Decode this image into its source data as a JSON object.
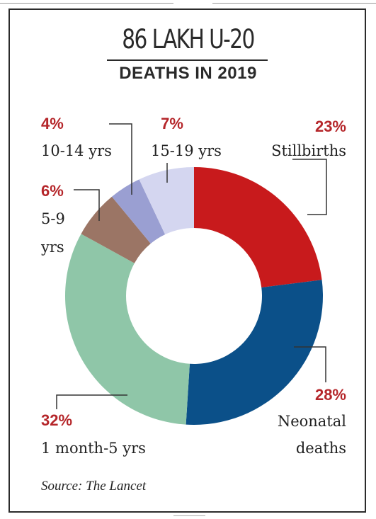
{
  "colors": {
    "accent_red": "#b5262a",
    "leader": "#333333"
  },
  "chart_data": {
    "type": "pie",
    "donut": true,
    "title": "86 LAKH U-20",
    "subtitle": "DEATHS IN 2019",
    "source": "Source: The Lancet",
    "slices": [
      {
        "label": "Stillbirths",
        "label_lines": [
          "Stillbirths"
        ],
        "value": 23,
        "value_label": "23%",
        "color": "#c81a1c"
      },
      {
        "label": "Neonatal deaths",
        "label_lines": [
          "Neonatal",
          "deaths"
        ],
        "value": 28,
        "value_label": "28%",
        "color": "#0b5089"
      },
      {
        "label": "1 month-5 yrs",
        "label_lines": [
          "1 month-5 yrs"
        ],
        "value": 32,
        "value_label": "32%",
        "color": "#8fc6a8"
      },
      {
        "label": "5-9 yrs",
        "label_lines": [
          "5-9",
          "yrs"
        ],
        "value": 6,
        "value_label": "6%",
        "color": "#9b7565"
      },
      {
        "label": "10-14 yrs",
        "label_lines": [
          "10-14 yrs"
        ],
        "value": 4,
        "value_label": "4%",
        "color": "#9a9fd2"
      },
      {
        "label": "15-19 yrs",
        "label_lines": [
          "15-19 yrs"
        ],
        "value": 7,
        "value_label": "7%",
        "color": "#d4d6f0"
      }
    ]
  }
}
